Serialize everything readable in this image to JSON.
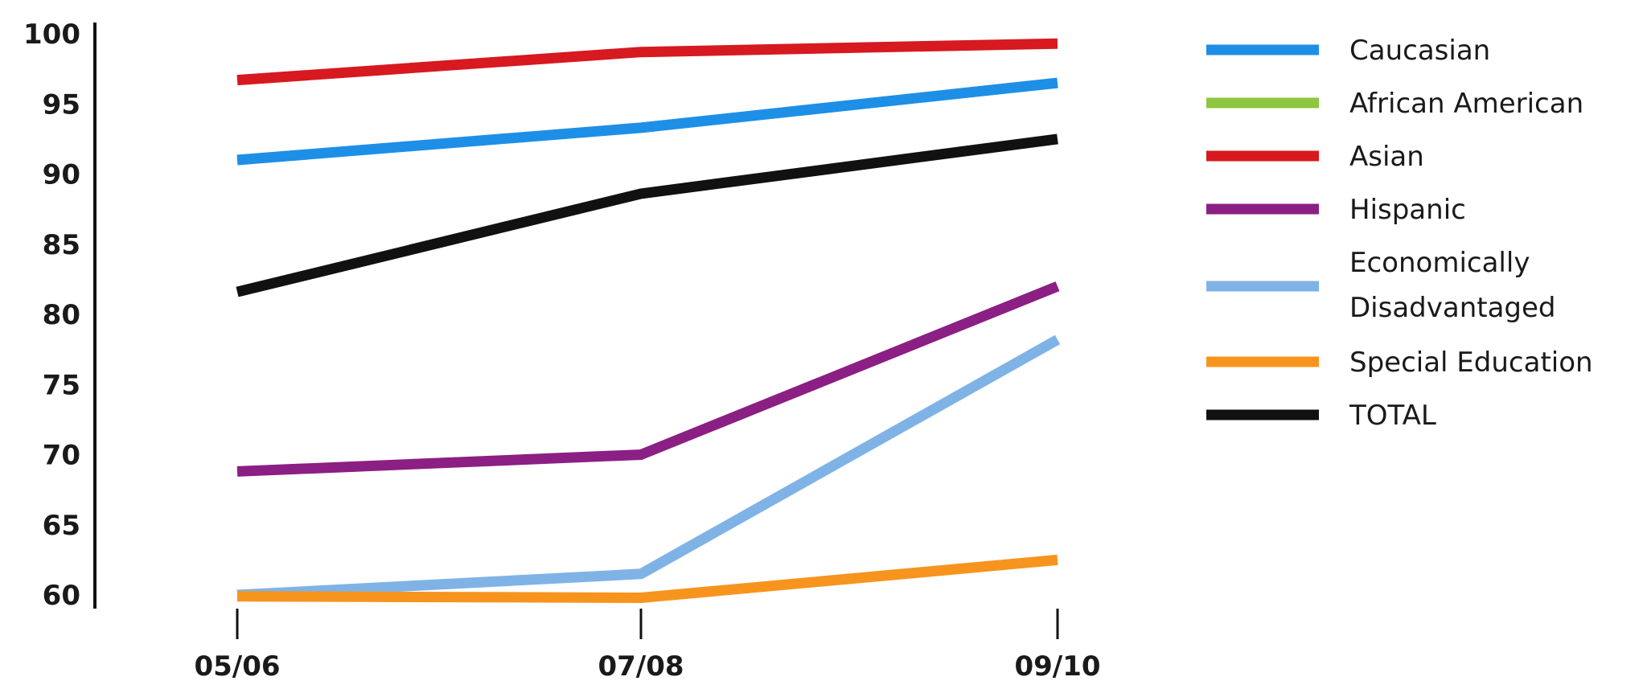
{
  "chart_data": {
    "type": "line",
    "title": "",
    "xlabel": "",
    "ylabel": "",
    "categories": [
      "05/06",
      "07/08",
      "09/10"
    ],
    "yticks": [
      60,
      65,
      70,
      75,
      80,
      85,
      90,
      95,
      100
    ],
    "ylim": [
      60,
      100
    ],
    "grid": false,
    "legend_position": "right",
    "series": [
      {
        "name": "Caucasian",
        "color": "#1e8fe6",
        "values": [
          91,
          93.3,
          96.5
        ]
      },
      {
        "name": "African American",
        "color": "#8ec63f",
        "values": [
          null,
          null,
          null
        ]
      },
      {
        "name": "Asian",
        "color": "#d71920",
        "values": [
          96.7,
          98.7,
          99.3
        ]
      },
      {
        "name": "Hispanic",
        "color": "#8b1f83",
        "values": [
          68.8,
          70,
          82
        ]
      },
      {
        "name": "Economically Disadvantaged",
        "legend_lines": [
          "Economically",
          "Disadvantaged"
        ],
        "color": "#7fb3e6",
        "values": [
          60,
          61.5,
          78.2
        ]
      },
      {
        "name": "Special Education",
        "color": "#f7941d",
        "values": [
          59.9,
          59.8,
          62.5
        ]
      },
      {
        "name": "TOTAL",
        "color": "#111111",
        "values": [
          81.6,
          88.6,
          92.5
        ]
      }
    ]
  }
}
